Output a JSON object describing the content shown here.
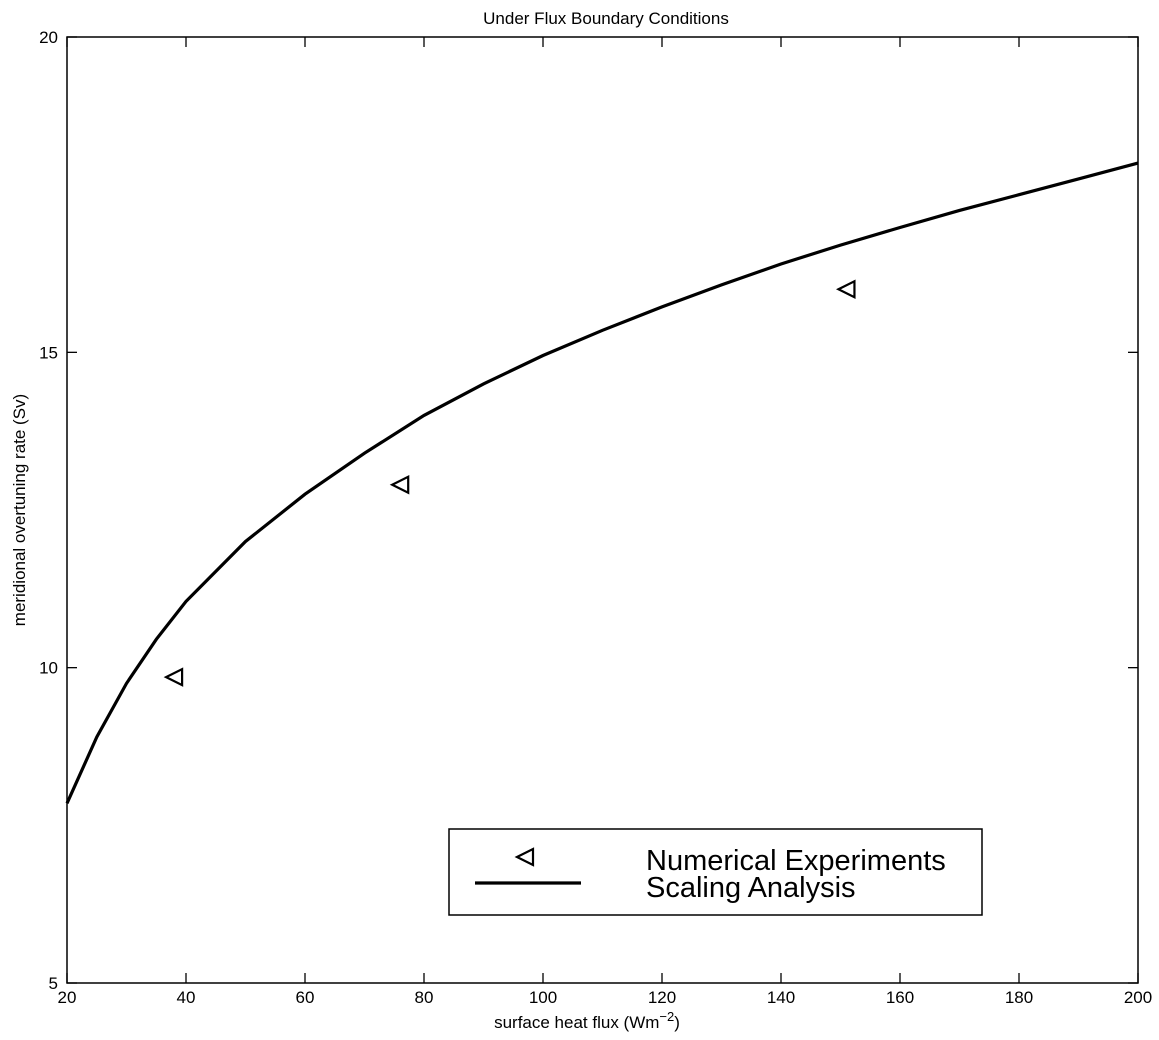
{
  "chart_data": {
    "type": "line",
    "title": "Under Flux Boundary Conditions",
    "xlabel": "surface heat flux (Wm",
    "xlabel_sup": "−2",
    "xlabel_end": ")",
    "ylabel": "meridional overtuning rate (Sv)",
    "xlim": [
      20,
      200
    ],
    "ylim": [
      5,
      20
    ],
    "x_ticks": [
      20,
      40,
      60,
      80,
      100,
      120,
      140,
      160,
      180,
      200
    ],
    "y_ticks": [
      5,
      10,
      15,
      20
    ],
    "grid": false,
    "legend_position": "bottom-right",
    "series": [
      {
        "name": "Numerical Experiments",
        "kind": "scatter",
        "marker": "triangle-left",
        "x": [
          38,
          76,
          151
        ],
        "y": [
          9.85,
          12.9,
          16.0
        ]
      },
      {
        "name": "Scaling Analysis",
        "kind": "line",
        "color": "#000000",
        "x": [
          20,
          25,
          30,
          35,
          40,
          50,
          60,
          70,
          80,
          90,
          100,
          110,
          120,
          130,
          140,
          150,
          160,
          170,
          180,
          190,
          200
        ],
        "y": [
          7.85,
          8.9,
          9.75,
          10.45,
          11.05,
          12.0,
          12.75,
          13.4,
          14.0,
          14.5,
          14.95,
          15.35,
          15.72,
          16.07,
          16.4,
          16.7,
          16.98,
          17.25,
          17.5,
          17.75,
          18.0
        ]
      }
    ]
  }
}
